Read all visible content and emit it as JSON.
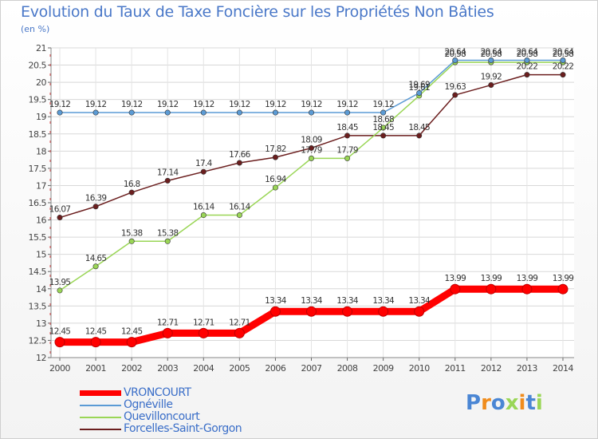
{
  "chart_data": {
    "type": "line",
    "title": "Evolution du Taux de Taxe Foncière sur les Propriétés Non Bâties",
    "ylabel": "(en %)",
    "xlabel": "",
    "ylim": [
      12,
      21
    ],
    "ytick_step": 0.5,
    "categories": [
      "2000",
      "2001",
      "2002",
      "2003",
      "2004",
      "2005",
      "2006",
      "2007",
      "2008",
      "2009",
      "2010",
      "2011",
      "2012",
      "2013",
      "2014"
    ],
    "series": [
      {
        "name": "VRONCOURT",
        "color": "#ff0000",
        "values": [
          12.45,
          12.45,
          12.45,
          12.71,
          12.71,
          12.71,
          13.34,
          13.34,
          13.34,
          13.34,
          13.34,
          13.99,
          13.99,
          13.99,
          13.99
        ],
        "labels": [
          "12.45",
          "12.45",
          "12.45",
          "12.71",
          "12.71",
          "12.71",
          "13.34",
          "13.34",
          "13.34",
          "13.34",
          "13.34",
          "13.99",
          "13.99",
          "13.99",
          "13.99"
        ]
      },
      {
        "name": "Ognéville",
        "color": "#5b9bd5",
        "values": [
          19.12,
          19.12,
          19.12,
          19.12,
          19.12,
          19.12,
          19.12,
          19.12,
          19.12,
          19.12,
          19.69,
          20.64,
          20.64,
          20.64,
          20.64
        ],
        "labels": [
          "19.12",
          "19.12",
          "19.12",
          "19.12",
          "19.12",
          "19.12",
          "19.12",
          "19.12",
          "19.12",
          "19.12",
          "19.69",
          "20.64",
          "20.64",
          "20.64",
          "20.64"
        ]
      },
      {
        "name": "Quevilloncourt",
        "color": "#9ad656",
        "values": [
          13.95,
          14.65,
          15.38,
          15.38,
          16.14,
          16.14,
          16.94,
          17.79,
          17.79,
          18.68,
          19.61,
          20.58,
          20.58,
          20.58,
          20.58
        ],
        "labels": [
          "13.95",
          "14.65",
          "15.38",
          "15.38",
          "16.14",
          "16.14",
          "16.94",
          "17.79",
          "17.79",
          "18.68",
          "19.61",
          "20.58",
          "20.58",
          "20.58",
          "20.58"
        ]
      },
      {
        "name": "Forcelles-Saint-Gorgon",
        "color": "#6b1e1e",
        "values": [
          16.07,
          16.39,
          16.8,
          17.14,
          17.4,
          17.66,
          17.82,
          18.09,
          18.45,
          18.45,
          18.45,
          19.63,
          19.92,
          20.22,
          20.22
        ],
        "labels": [
          "16.07",
          "16.39",
          "16.8",
          "17.14",
          "17.4",
          "17.66",
          "17.82",
          "18.09",
          "18.45",
          "18.45",
          "18.45",
          "19.63",
          "19.92",
          "20.22",
          "20.22"
        ]
      }
    ]
  },
  "logo": {
    "text": "Proxiti",
    "letters": [
      "P",
      "r",
      "o",
      "x",
      "i",
      "t",
      "i"
    ],
    "colors": [
      "#4a86d4",
      "#f08c1c",
      "#4a86d4",
      "#9ad656",
      "#f08c1c",
      "#4a86d4",
      "#9ad656"
    ]
  }
}
